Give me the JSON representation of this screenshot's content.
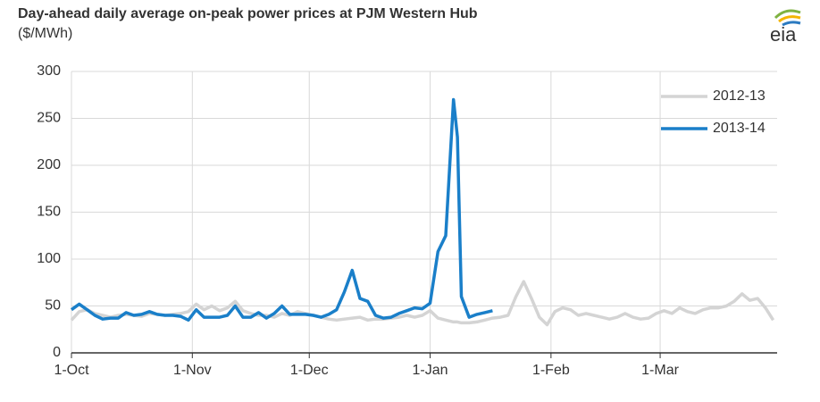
{
  "chart_data": {
    "type": "line",
    "title": "Day-ahead daily average on-peak power prices at PJM Western Hub",
    "subtitle": "($/MWh)",
    "x": [
      0,
      2,
      4,
      6,
      8,
      10,
      12,
      14,
      16,
      18,
      20,
      22,
      24,
      26,
      28,
      30,
      32,
      34,
      36,
      38,
      40,
      42,
      44,
      46,
      48,
      50,
      52,
      54,
      56,
      58,
      60,
      62,
      64,
      66,
      68,
      70,
      72,
      74,
      76,
      78,
      80,
      82,
      84,
      86,
      88,
      90,
      92,
      94,
      96,
      98,
      99,
      100,
      102,
      104,
      106,
      108,
      110,
      112,
      114,
      116,
      118,
      120,
      122,
      124,
      126,
      128,
      130,
      132,
      134,
      136,
      138,
      140,
      142,
      144,
      146,
      148,
      150,
      152,
      154,
      156,
      158,
      160,
      162,
      164,
      166,
      168,
      170,
      172,
      174,
      176,
      178,
      180
    ],
    "xlim": [
      0,
      181
    ],
    "xticks": [
      {
        "value": 0,
        "label": "1-Oct"
      },
      {
        "value": 31,
        "label": "1-Nov"
      },
      {
        "value": 61,
        "label": "1-Dec"
      },
      {
        "value": 92,
        "label": "1-Jan"
      },
      {
        "value": 123,
        "label": "1-Feb"
      },
      {
        "value": 151,
        "label": "1-Mar"
      }
    ],
    "ylim": [
      0,
      300
    ],
    "yticks": [
      0,
      50,
      100,
      150,
      200,
      250,
      300
    ],
    "grid": true,
    "legend": "upper right",
    "series": [
      {
        "name": "2012-13",
        "color": "#d4d4d4",
        "values": [
          35,
          44,
          46,
          42,
          40,
          38,
          40,
          41,
          40,
          39,
          42,
          41,
          40,
          41,
          42,
          44,
          52,
          46,
          50,
          45,
          48,
          55,
          45,
          42,
          40,
          40,
          38,
          42,
          40,
          44,
          42,
          40,
          38,
          36,
          35,
          36,
          37,
          38,
          35,
          36,
          36,
          37,
          38,
          40,
          38,
          40,
          45,
          37,
          35,
          33,
          33,
          32,
          32,
          33,
          35,
          37,
          38,
          40,
          60,
          76,
          58,
          38,
          30,
          44,
          48,
          46,
          40,
          42,
          40,
          38,
          36,
          38,
          42,
          38,
          36,
          37,
          42,
          45,
          42,
          48,
          44,
          42,
          46,
          48,
          48,
          50,
          55,
          63,
          56,
          58,
          48,
          35
        ]
      },
      {
        "name": "2013-14",
        "color": "#1a7fc9",
        "values": [
          46,
          52,
          46,
          40,
          36,
          37,
          37,
          43,
          40,
          41,
          44,
          41,
          40,
          40,
          39,
          35,
          46,
          38,
          38,
          38,
          40,
          50,
          38,
          38,
          43,
          37,
          42,
          50,
          41,
          41,
          41,
          40,
          38,
          41,
          46,
          65,
          88,
          58,
          55,
          40,
          37,
          38,
          42,
          45,
          48,
          47,
          53,
          108,
          125,
          270,
          230,
          60,
          38,
          41,
          43,
          45,
          null,
          null,
          null,
          null,
          null,
          null,
          null,
          null,
          null,
          null,
          null,
          null,
          null,
          null,
          null,
          null,
          null,
          null,
          null,
          null,
          null,
          null,
          null,
          null,
          null,
          null,
          null,
          null,
          null,
          null,
          null,
          null,
          null,
          null,
          null,
          null
        ]
      }
    ]
  }
}
